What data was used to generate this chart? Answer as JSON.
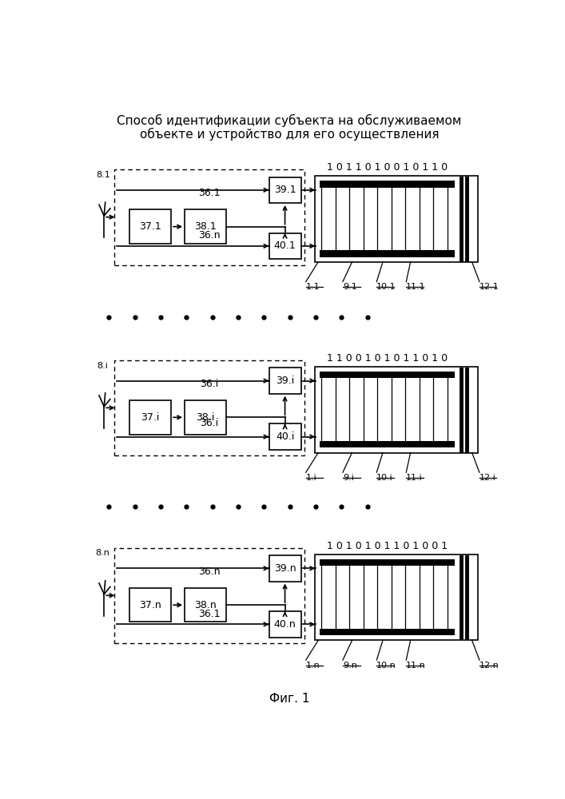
{
  "title_line1": "Способ идентификации субъекта на обслуживаемом",
  "title_line2": "объекте и устройство для его осуществления",
  "fig_label": "Фиг. 1",
  "panels": [
    {
      "suffix": "1",
      "bits": "1 0 1 1 0 1 0 0 1 0 1 1 0",
      "label_8": "8.1",
      "label_36": "36.1",
      "label_37": "37.1",
      "label_38": "38.1",
      "label_39": "39.1",
      "label_40": "40.1",
      "label_1": "1.1",
      "label_9": "9.1",
      "label_10": "10.1",
      "label_11": "11.1",
      "label_12": "12.1"
    },
    {
      "suffix": "i",
      "bits": "1 1 0 0 1 0 1 0 1 1 0 1 0",
      "label_8": "8.i",
      "label_36": "36.i",
      "label_37": "37.i",
      "label_38": "38.i",
      "label_39": "39.i",
      "label_40": "40.i",
      "label_1": "1.i",
      "label_9": "9.i",
      "label_10": "10.i",
      "label_11": "11.i",
      "label_12": "12.i"
    },
    {
      "suffix": "n",
      "bits": "1 0 1 0 1 0 1 1 0 1 0 0 1",
      "label_8": "8.n",
      "label_36": "36.n",
      "label_37": "37.n",
      "label_38": "38.n",
      "label_39": "39.n",
      "label_40": "40.n",
      "label_1": "1.n",
      "label_9": "9.n",
      "label_10": "10.n",
      "label_11": "11.n",
      "label_12": "12.n"
    }
  ]
}
